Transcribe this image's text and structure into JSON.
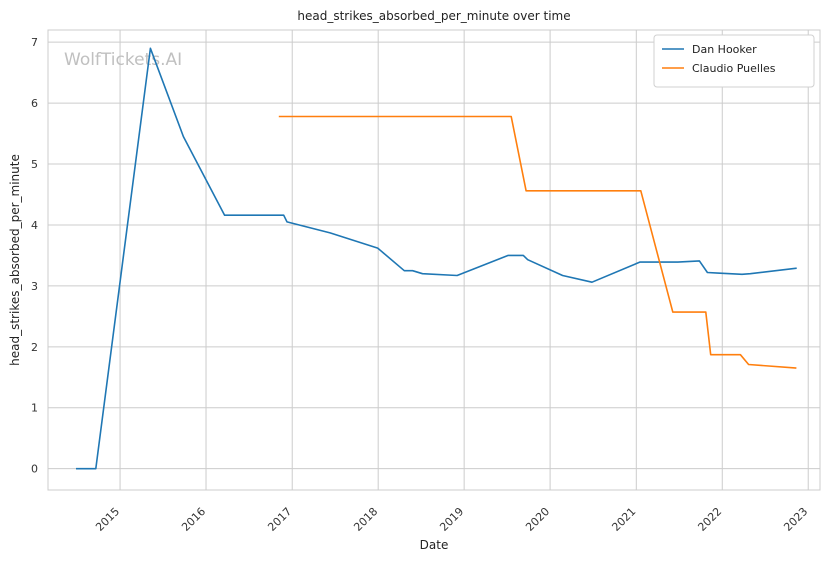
{
  "chart_data": {
    "type": "line",
    "title": "head_strikes_absorbed_per_minute over time",
    "xlabel": "Date",
    "ylabel": "head_strikes_absorbed_per_minute",
    "watermark": "WolfTickets.AI",
    "xlim": [
      "2014-03-01",
      "2023-02-20"
    ],
    "ylim": [
      -0.35,
      7.2
    ],
    "x_ticks": [
      "2015-01-01",
      "2016-01-01",
      "2017-01-01",
      "2018-01-01",
      "2019-01-01",
      "2020-01-01",
      "2021-01-01",
      "2022-01-01",
      "2023-01-01"
    ],
    "x_tick_labels": [
      "2015",
      "2016",
      "2017",
      "2018",
      "2019",
      "2020",
      "2021",
      "2022",
      "2023"
    ],
    "y_ticks": [
      0,
      1,
      2,
      3,
      4,
      5,
      6,
      7
    ],
    "y_tick_labels": [
      "0",
      "1",
      "2",
      "3",
      "4",
      "5",
      "6",
      "7"
    ],
    "grid": true,
    "legend_position": "top-right",
    "series": [
      {
        "name": "Dan Hooker",
        "color": "#1f77b4",
        "points": [
          [
            "2014-06-28",
            0.0
          ],
          [
            "2014-09-20",
            0.0
          ],
          [
            "2015-05-10",
            6.9
          ],
          [
            "2015-09-27",
            5.45
          ],
          [
            "2016-03-20",
            4.16
          ],
          [
            "2016-11-26",
            4.16
          ],
          [
            "2016-12-10",
            4.05
          ],
          [
            "2017-06-11",
            3.87
          ],
          [
            "2017-12-30",
            3.62
          ],
          [
            "2018-04-22",
            3.25
          ],
          [
            "2018-05-27",
            3.25
          ],
          [
            "2018-07-08",
            3.2
          ],
          [
            "2018-12-02",
            3.17
          ],
          [
            "2019-07-07",
            3.5
          ],
          [
            "2019-09-09",
            3.5
          ],
          [
            "2019-09-28",
            3.43
          ],
          [
            "2020-02-23",
            3.17
          ],
          [
            "2020-06-27",
            3.06
          ],
          [
            "2021-01-16",
            3.39
          ],
          [
            "2021-06-26",
            3.39
          ],
          [
            "2021-09-26",
            3.41
          ],
          [
            "2021-10-30",
            3.22
          ],
          [
            "2021-12-12",
            3.21
          ],
          [
            "2022-03-26",
            3.19
          ],
          [
            "2022-04-30",
            3.2
          ],
          [
            "2022-11-13",
            3.29
          ]
        ]
      },
      {
        "name": "Claudio Puelles",
        "color": "#ff7f0e",
        "points": [
          [
            "2016-11-05",
            5.78
          ],
          [
            "2019-07-20",
            5.78
          ],
          [
            "2019-09-21",
            4.56
          ],
          [
            "2021-01-20",
            4.56
          ],
          [
            "2021-06-05",
            2.57
          ],
          [
            "2021-10-23",
            2.57
          ],
          [
            "2021-11-13",
            1.87
          ],
          [
            "2022-03-19",
            1.87
          ],
          [
            "2022-04-23",
            1.71
          ],
          [
            "2022-11-12",
            1.65
          ]
        ]
      }
    ]
  }
}
